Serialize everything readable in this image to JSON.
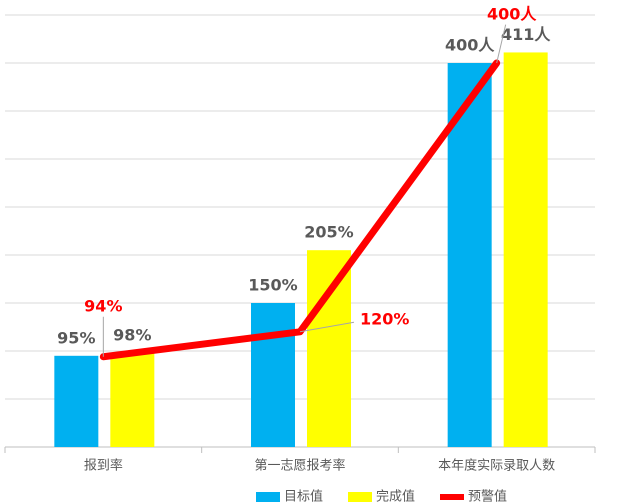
{
  "chart_data": {
    "type": "bar",
    "categories": [
      "报到率",
      "第一志愿报考率",
      "本年度实际录取人数"
    ],
    "series": [
      {
        "name": "目标值",
        "type": "bar",
        "color": "#00b0f0",
        "values": [
          95,
          150,
          400
        ],
        "value_labels": [
          "95%",
          "150%",
          "400人"
        ]
      },
      {
        "name": "完成值",
        "type": "bar",
        "color": "#ffff00",
        "values": [
          98,
          205,
          411
        ],
        "value_labels": [
          "98%",
          "205%",
          "411人"
        ]
      },
      {
        "name": "预警值",
        "type": "line",
        "color": "#ff0000",
        "values": [
          94,
          120,
          400
        ],
        "value_labels": [
          "94%",
          "120%",
          "400人"
        ]
      }
    ],
    "ylim": [
      0,
      450
    ],
    "yticks": [
      0,
      50,
      100,
      150,
      200,
      250,
      300,
      350,
      400,
      450
    ],
    "grid": true,
    "legend": "bottom"
  }
}
